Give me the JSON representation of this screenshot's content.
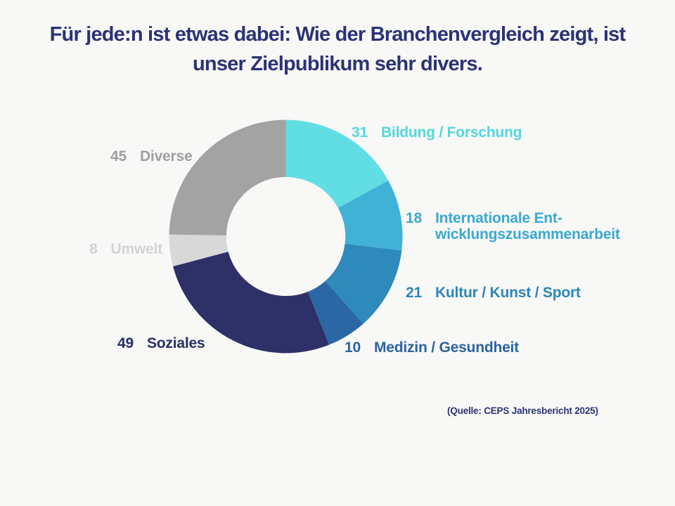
{
  "page": {
    "background": "#F8F8F6",
    "title": "Für jede:n ist etwas dabei: Wie der Branchenvergleich zeigt, ist\nunser Zielpublikum sehr divers.",
    "title_color": "#2B3375",
    "source_note": "(Quelle: CEPS Jahresbericht 2025)"
  },
  "chart_data": {
    "type": "pie",
    "variant": "donut",
    "title": "Für jede:n ist etwas dabei: Wie der Branchenvergleich zeigt, ist unser Zielpublikum sehr divers.",
    "total": 182,
    "start_angle_deg": 0,
    "direction": "clockwise",
    "inner_radius_ratio": 0.51,
    "legend_position": "around",
    "grid": false,
    "segments": [
      {
        "label": "Bildung / Forschung",
        "display_label": "Bildung / Forschung",
        "value": 31,
        "color": "#61DEE4",
        "label_color": "#53D7DE"
      },
      {
        "label": "Internationale Entwicklungszusammenarbeit",
        "display_label": "Internationale Ent-\nwicklungszusammenarbeit",
        "value": 18,
        "color": "#40B2D6",
        "label_color": "#3AA9CF"
      },
      {
        "label": "Kultur / Kunst / Sport",
        "display_label": "Kultur / Kunst / Sport",
        "value": 21,
        "color": "#2E8ABB",
        "label_color": "#2C86B8"
      },
      {
        "label": "Medizin / Gesundheit",
        "display_label": "Medizin / Gesundheit",
        "value": 10,
        "color": "#2A67A4",
        "label_color": "#2B63A0"
      },
      {
        "label": "Soziales",
        "display_label": "Soziales",
        "value": 49,
        "color": "#2D3167",
        "label_color": "#292F66"
      },
      {
        "label": "Umwelt",
        "display_label": "Umwelt",
        "value": 8,
        "color": "#D8D8D8",
        "label_color": "#D3D3D3"
      },
      {
        "label": "Diverse",
        "display_label": "Diverse",
        "value": 45,
        "color": "#A3A3A3",
        "label_color": "#9F9F9F"
      }
    ]
  }
}
